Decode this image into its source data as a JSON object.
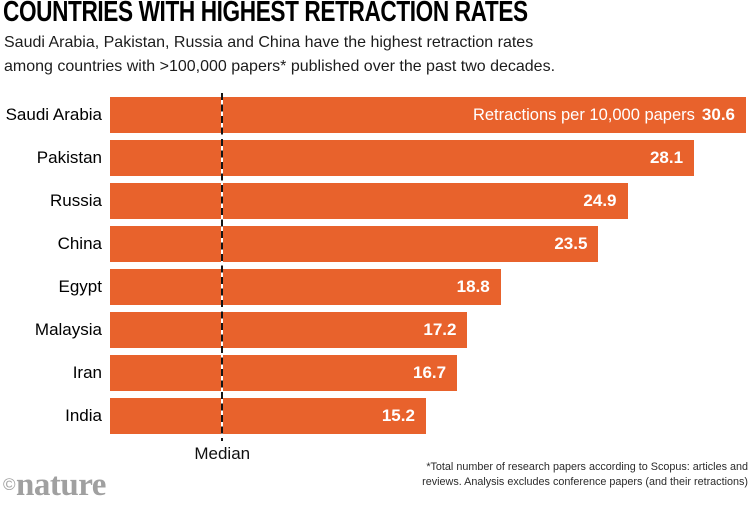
{
  "header": {
    "title": "COUNTRIES WITH HIGHEST RETRACTION RATES",
    "subtitle_line1": "Saudi Arabia, Pakistan, Russia and China have the highest retraction rates",
    "subtitle_line2": "among countries with >100,000 papers* published over the past two decades."
  },
  "chart_data": {
    "type": "bar",
    "orientation": "horizontal",
    "title": "COUNTRIES WITH HIGHEST RETRACTION RATES",
    "unit_label": "Retractions per 10,000 papers",
    "categories": [
      "Saudi Arabia",
      "Pakistan",
      "Russia",
      "China",
      "Egypt",
      "Malaysia",
      "Iran",
      "India"
    ],
    "values": [
      30.6,
      28.1,
      24.9,
      23.5,
      18.8,
      17.2,
      16.7,
      15.2
    ],
    "xlim": [
      0,
      30.6
    ],
    "median_label": "Median",
    "median_value": 5.4,
    "grid": false,
    "legend": false,
    "bar_color": "#E8622C",
    "value_label_color": "#FFFFFF"
  },
  "footer": {
    "footnote_line1": "*Total number of research papers according to Scopus: articles and",
    "footnote_line2": "reviews. Analysis excludes conference papers (and their retractions)",
    "credit_symbol": "©",
    "credit_name": "nature"
  }
}
